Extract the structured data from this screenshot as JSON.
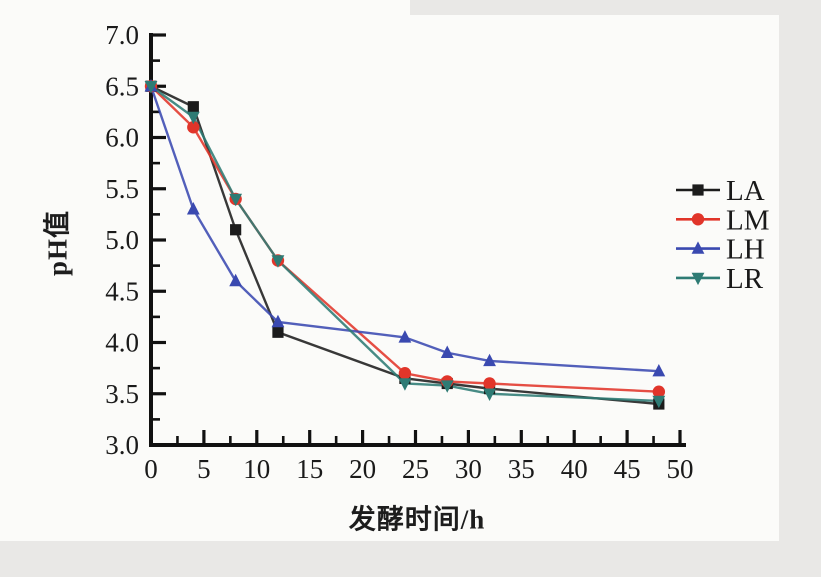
{
  "figure": {
    "kind": "scanned-scientific-line-chart",
    "background": "#fbfbf9",
    "page_edge_color": "#e9e8e6",
    "axis_color": "#111111"
  },
  "chart_data": {
    "type": "line",
    "title": "",
    "xlabel": "发酵时间/h",
    "ylabel": "pH值",
    "x": [
      0,
      4,
      8,
      12,
      24,
      28,
      32,
      48
    ],
    "xlim": [
      0,
      50
    ],
    "ylim": [
      3.0,
      7.0
    ],
    "x_major_ticks": [
      0,
      5,
      10,
      15,
      20,
      25,
      30,
      35,
      40,
      45,
      50
    ],
    "y_major_ticks": [
      3.0,
      3.5,
      4.0,
      4.5,
      5.0,
      5.5,
      6.0,
      6.5,
      7.0
    ],
    "x_minor_ticks": [
      2.5,
      7.5,
      12.5,
      17.5,
      22.5,
      27.5,
      32.5,
      37.5,
      42.5,
      47.5
    ],
    "y_minor_ticks": [
      3.25,
      3.75,
      4.25,
      4.75,
      5.25,
      5.75,
      6.25,
      6.75
    ],
    "grid": false,
    "legend_position": "right-outside",
    "series": [
      {
        "name": "LA",
        "marker": "square",
        "color": "#1c1c1c",
        "values": [
          6.5,
          6.3,
          5.1,
          4.1,
          3.65,
          3.6,
          3.55,
          3.4
        ]
      },
      {
        "name": "LM",
        "marker": "circle",
        "color": "#e1352a",
        "values": [
          6.5,
          6.1,
          5.4,
          4.8,
          3.7,
          3.62,
          3.6,
          3.52
        ]
      },
      {
        "name": "LH",
        "marker": "triangle-up",
        "color": "#3a49b0",
        "values": [
          6.5,
          5.3,
          4.6,
          4.2,
          4.05,
          3.9,
          3.82,
          3.72
        ]
      },
      {
        "name": "LR",
        "marker": "triangle-down",
        "color": "#2e7b74",
        "values": [
          6.5,
          6.2,
          5.4,
          4.8,
          3.6,
          3.58,
          3.5,
          3.43
        ]
      }
    ]
  }
}
